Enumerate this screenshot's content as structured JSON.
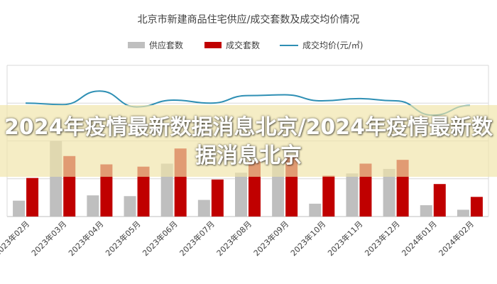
{
  "chart_data": {
    "type": "bar",
    "title": "北京市新建商品住宅供应/成交套数及成交均价情况",
    "categories": [
      "2023年02月",
      "2023年03月",
      "2023年04月",
      "2023年05月",
      "2023年06月",
      "2023年07月",
      "2023年08月",
      "2023年09月",
      "2023年10月",
      "2023年11月",
      "2023年12月",
      "2024年01月",
      "2024年02月"
    ],
    "series": [
      {
        "name": "供应套数",
        "kind": "bar",
        "color": "#bfbfbf",
        "values": [
          21,
          100,
          28,
          27,
          70,
          22,
          58,
          69,
          17,
          57,
          63,
          15,
          9
        ]
      },
      {
        "name": "成交套数",
        "kind": "bar",
        "color": "#c00000",
        "values": [
          51,
          80,
          69,
          66,
          90,
          49,
          73,
          80,
          54,
          70,
          75,
          43,
          26
        ]
      },
      {
        "name": "成交均价(元/㎡)",
        "kind": "line",
        "color": "#2e8fb4",
        "values": [
          150,
          148,
          166,
          145,
          154,
          150,
          160,
          161,
          153,
          156,
          153,
          134,
          147
        ]
      }
    ],
    "ylim": [
      0,
      200
    ],
    "grid": true,
    "legend": "top-center"
  },
  "banner": {
    "text": "2024年疫情最新数据消息北京/2024年疫情最新数据消息北京"
  }
}
